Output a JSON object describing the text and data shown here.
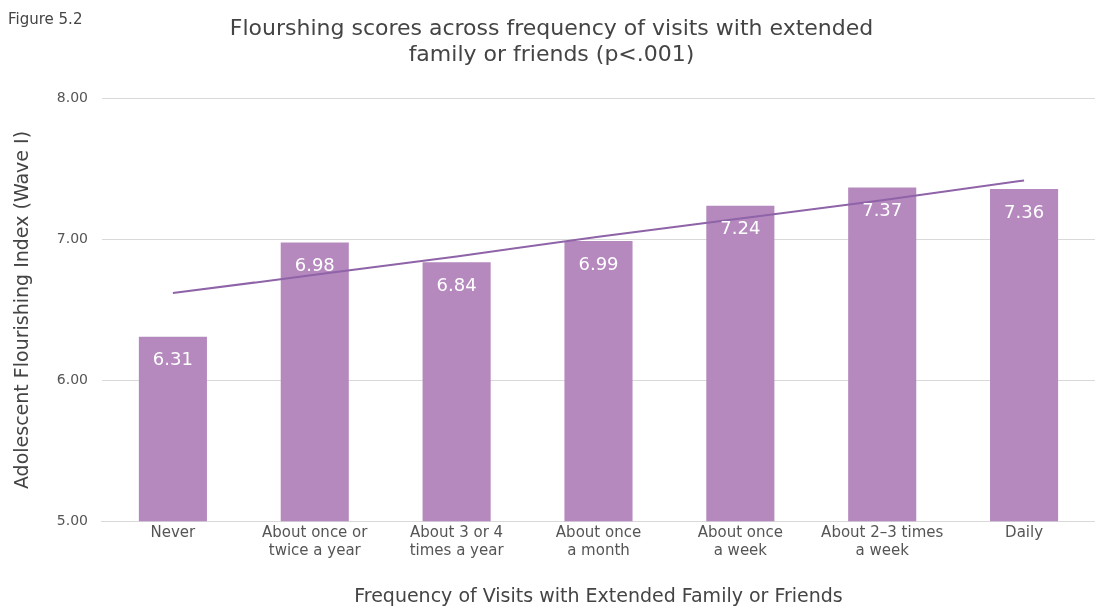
{
  "chart_data": {
    "type": "bar",
    "title": "Flourshing scores across frequency of visits with extended family or friends (p<.001)",
    "xlabel": "Frequency of Visits with Extended Family or Friends",
    "ylabel": "Adolescent Flourishing Index (Wave I)",
    "categories": [
      "Never",
      "About once or twice a year",
      "About 3 or 4 times a year",
      "About once a month",
      "About once a week",
      "About 2–3 times a week",
      "Daily"
    ],
    "series": [
      {
        "color": "#b589be",
        "values": [
          6.31,
          6.98,
          6.84,
          6.99,
          7.24,
          7.37,
          7.36
        ],
        "value_labels": [
          "6.31",
          "6.98",
          "6.84",
          "6.99",
          "7.24",
          "7.37",
          "7.36"
        ]
      },
      {
        "type": "line",
        "color": "#8e63a8",
        "values": [
          6.62,
          6.75,
          6.88,
          7.02,
          7.15,
          7.28,
          7.42
        ]
      }
    ],
    "ylim": [
      5,
      8
    ],
    "yticks": [
      {
        "value": 5,
        "label": "5.00"
      },
      {
        "value": 6,
        "label": "6.00"
      },
      {
        "value": 7,
        "label": "7.00"
      },
      {
        "value": 8,
        "label": "8.00"
      }
    ],
    "grid": "y",
    "marker": "none",
    "line_style": "solid",
    "annotations": [
      "Figure 5.2"
    ]
  }
}
